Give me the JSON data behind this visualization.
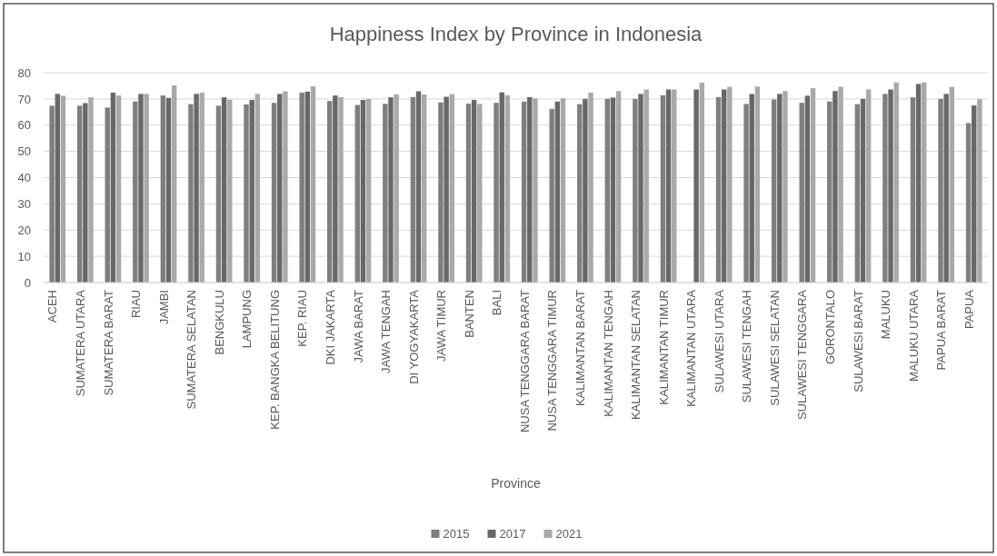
{
  "chart_data": {
    "type": "bar",
    "title": "Happiness Index by Province in Indonesia",
    "xlabel": "Province",
    "categories": [
      "ACEH",
      "SUMATERA UTARA",
      "SUMATERA BARAT",
      "RIAU",
      "JAMBI",
      "SUMATERA SELATAN",
      "BENGKULU",
      "LAMPUNG",
      "KEP. BANGKA BELITUNG",
      "KEP. RIAU",
      "DKI JAKARTA",
      "JAWA BARAT",
      "JAWA TENGAH",
      "DI YOGYAKARTA",
      "JAWA TIMUR",
      "BANTEN",
      "BALI",
      "NUSA TENGGARA BARAT",
      "NUSA TENGGARA TIMUR",
      "KALIMANTAN BARAT",
      "KALIMANTAN TENGAH",
      "KALIMANTAN SELATAN",
      "KALIMANTAN TIMUR",
      "KALIMANTAN UTARA",
      "SULAWESI UTARA",
      "SULAWESI TENGAH",
      "SULAWESI SELATAN",
      "SULAWESI TENGGARA",
      "GORONTALO",
      "SULAWESI BARAT",
      "MALUKU",
      "MALUKU UTARA",
      "PAPUA BARAT",
      "PAPUA"
    ],
    "series": [
      {
        "name": "2015",
        "color": "#7f7f7f",
        "values": [
          67.4,
          67.4,
          66.7,
          69.0,
          71.3,
          68.0,
          67.4,
          67.9,
          68.5,
          72.4,
          69.2,
          67.7,
          68.1,
          70.7,
          68.7,
          68.2,
          68.5,
          69.0,
          66.2,
          68.0,
          70.0,
          70.0,
          71.4,
          null,
          70.7,
          68.1,
          69.8,
          68.5,
          69.0,
          68.0,
          71.9,
          70.6,
          70.0,
          60.8
        ]
      },
      {
        "name": "2017",
        "color": "#686868",
        "values": [
          71.9,
          68.4,
          72.4,
          71.9,
          70.4,
          71.9,
          70.6,
          69.6,
          71.9,
          72.8,
          71.3,
          69.6,
          70.6,
          72.9,
          70.8,
          69.6,
          72.5,
          70.7,
          69.0,
          70.0,
          70.5,
          71.9,
          73.6,
          73.6,
          73.6,
          71.9,
          71.9,
          71.2,
          73.0,
          70.0,
          73.6,
          75.7,
          71.9,
          67.5
        ]
      },
      {
        "name": "2021",
        "color": "#a9a9a9",
        "values": [
          71.2,
          70.6,
          71.3,
          71.9,
          75.2,
          72.4,
          69.7,
          71.9,
          72.9,
          74.8,
          70.7,
          70.0,
          71.7,
          71.7,
          71.8,
          68.1,
          71.4,
          70.2,
          70.2,
          72.4,
          73.0,
          73.6,
          73.6,
          76.2,
          74.6,
          74.7,
          73.0,
          74.1,
          74.6,
          73.6,
          76.3,
          76.3,
          74.6,
          69.9
        ]
      }
    ],
    "ylim": [
      0,
      80
    ],
    "yticks": [
      0,
      10,
      20,
      30,
      40,
      50,
      60,
      70,
      80
    ],
    "grid": "y",
    "legend": "bottom"
  }
}
